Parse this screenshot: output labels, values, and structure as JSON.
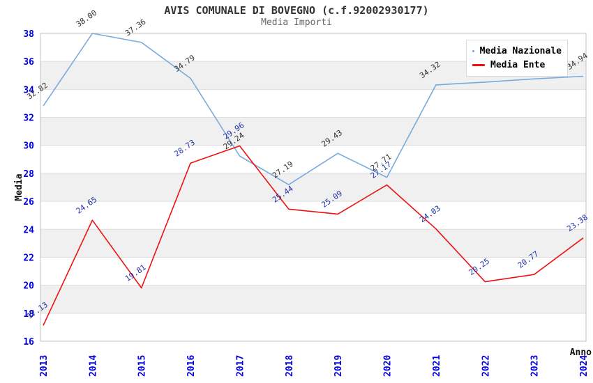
{
  "header": {
    "title": "AVIS COMUNALE DI BOVEGNO (c.f.92002930177)",
    "subtitle": "Media Importi"
  },
  "chart_data": {
    "type": "line",
    "x": [
      "2013",
      "2014",
      "2015",
      "2016",
      "2017",
      "2018",
      "2019",
      "2020",
      "2021",
      "2022",
      "2023",
      "2024"
    ],
    "series": [
      {
        "name": "Media Nazionale",
        "color": "#77aadd",
        "label_color": "#333333",
        "values": [
          32.82,
          38.0,
          37.36,
          34.79,
          29.24,
          27.19,
          29.43,
          27.71,
          34.32,
          34.52,
          34.75,
          34.94
        ]
      },
      {
        "name": "Media Ente",
        "color": "#ee1111",
        "label_color": "#2233aa",
        "values": [
          17.13,
          24.65,
          19.81,
          28.73,
          29.96,
          25.44,
          25.09,
          27.17,
          24.03,
          20.25,
          20.77,
          23.38
        ]
      }
    ],
    "xlabel": "Anno",
    "ylabel": "Media",
    "ylim": [
      16,
      38
    ],
    "ytick_step": 2,
    "yticks": [
      "16",
      "18",
      "20",
      "22",
      "24",
      "26",
      "28",
      "30",
      "32",
      "34",
      "36",
      "38"
    ],
    "legend_position": "top-right",
    "grid_bands": true,
    "colors": {
      "tick_label": "#0000dd",
      "axis_title": "#111111",
      "band": "#f0f0f0",
      "gridline": "#dddddd",
      "plot_border": "#c0c0c0",
      "title": "#333333",
      "subtitle": "#666666"
    }
  }
}
